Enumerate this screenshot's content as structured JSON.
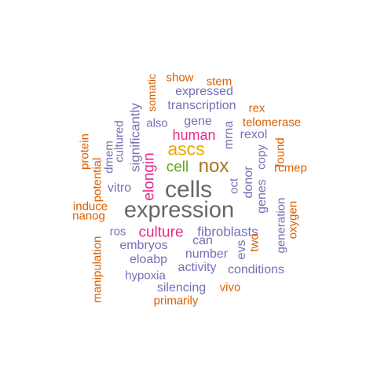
{
  "palette": {
    "orange": "#d95f02",
    "purple": "#7570b3",
    "magenta": "#e7298a",
    "green": "#66a61e",
    "gold": "#e6ab02",
    "brown": "#a6761d",
    "gray": "#666666"
  },
  "words": [
    {
      "text": "cells",
      "color": "gray",
      "orientation": "horizontal"
    },
    {
      "text": "expression",
      "color": "gray",
      "orientation": "horizontal"
    },
    {
      "text": "nox",
      "color": "brown",
      "orientation": "horizontal"
    },
    {
      "text": "ascs",
      "color": "gold",
      "orientation": "horizontal"
    },
    {
      "text": "cell",
      "color": "green",
      "orientation": "horizontal"
    },
    {
      "text": "elongin",
      "color": "magenta",
      "orientation": "vertical"
    },
    {
      "text": "culture",
      "color": "magenta",
      "orientation": "horizontal"
    },
    {
      "text": "human",
      "color": "magenta",
      "orientation": "horizontal"
    },
    {
      "text": "fibroblasts",
      "color": "purple",
      "orientation": "horizontal"
    },
    {
      "text": "significantly",
      "color": "purple",
      "orientation": "vertical"
    },
    {
      "text": "transcription",
      "color": "purple",
      "orientation": "horizontal"
    },
    {
      "text": "expressed",
      "color": "purple",
      "orientation": "horizontal"
    },
    {
      "text": "gene",
      "color": "purple",
      "orientation": "horizontal"
    },
    {
      "text": "also",
      "color": "purple",
      "orientation": "horizontal"
    },
    {
      "text": "mrna",
      "color": "purple",
      "orientation": "vertical"
    },
    {
      "text": "rexol",
      "color": "purple",
      "orientation": "horizontal"
    },
    {
      "text": "copy",
      "color": "purple",
      "orientation": "vertical"
    },
    {
      "text": "donor",
      "color": "purple",
      "orientation": "vertical"
    },
    {
      "text": "genes",
      "color": "purple",
      "orientation": "vertical"
    },
    {
      "text": "oct",
      "color": "purple",
      "orientation": "vertical"
    },
    {
      "text": "can",
      "color": "purple",
      "orientation": "horizontal"
    },
    {
      "text": "number",
      "color": "purple",
      "orientation": "horizontal"
    },
    {
      "text": "evs",
      "color": "purple",
      "orientation": "vertical"
    },
    {
      "text": "embryos",
      "color": "purple",
      "orientation": "horizontal"
    },
    {
      "text": "eloabp",
      "color": "purple",
      "orientation": "horizontal"
    },
    {
      "text": "activity",
      "color": "purple",
      "orientation": "horizontal"
    },
    {
      "text": "conditions",
      "color": "purple",
      "orientation": "horizontal"
    },
    {
      "text": "hypoxia",
      "color": "purple",
      "orientation": "horizontal"
    },
    {
      "text": "silencing",
      "color": "purple",
      "orientation": "horizontal"
    },
    {
      "text": "generation",
      "color": "purple",
      "orientation": "vertical"
    },
    {
      "text": "ros",
      "color": "purple",
      "orientation": "horizontal"
    },
    {
      "text": "vitro",
      "color": "purple",
      "orientation": "horizontal"
    },
    {
      "text": "cultured",
      "color": "purple",
      "orientation": "vertical"
    },
    {
      "text": "dmem",
      "color": "purple",
      "orientation": "vertical"
    },
    {
      "text": "show",
      "color": "orange",
      "orientation": "horizontal"
    },
    {
      "text": "stem",
      "color": "orange",
      "orientation": "horizontal"
    },
    {
      "text": "somatic",
      "color": "orange",
      "orientation": "vertical"
    },
    {
      "text": "rex",
      "color": "orange",
      "orientation": "horizontal"
    },
    {
      "text": "telomerase",
      "color": "orange",
      "orientation": "horizontal"
    },
    {
      "text": "found",
      "color": "orange",
      "orientation": "vertical"
    },
    {
      "text": "rcmep",
      "color": "orange",
      "orientation": "horizontal"
    },
    {
      "text": "oxygen",
      "color": "orange",
      "orientation": "vertical"
    },
    {
      "text": "two",
      "color": "orange",
      "orientation": "vertical"
    },
    {
      "text": "vivo",
      "color": "orange",
      "orientation": "horizontal"
    },
    {
      "text": "primarily",
      "color": "orange",
      "orientation": "horizontal"
    },
    {
      "text": "manipulation",
      "color": "orange",
      "orientation": "vertical"
    },
    {
      "text": "nanog",
      "color": "orange",
      "orientation": "horizontal"
    },
    {
      "text": "induce",
      "color": "orange",
      "orientation": "horizontal"
    },
    {
      "text": "potential",
      "color": "orange",
      "orientation": "vertical"
    },
    {
      "text": "protein",
      "color": "orange",
      "orientation": "vertical"
    }
  ]
}
